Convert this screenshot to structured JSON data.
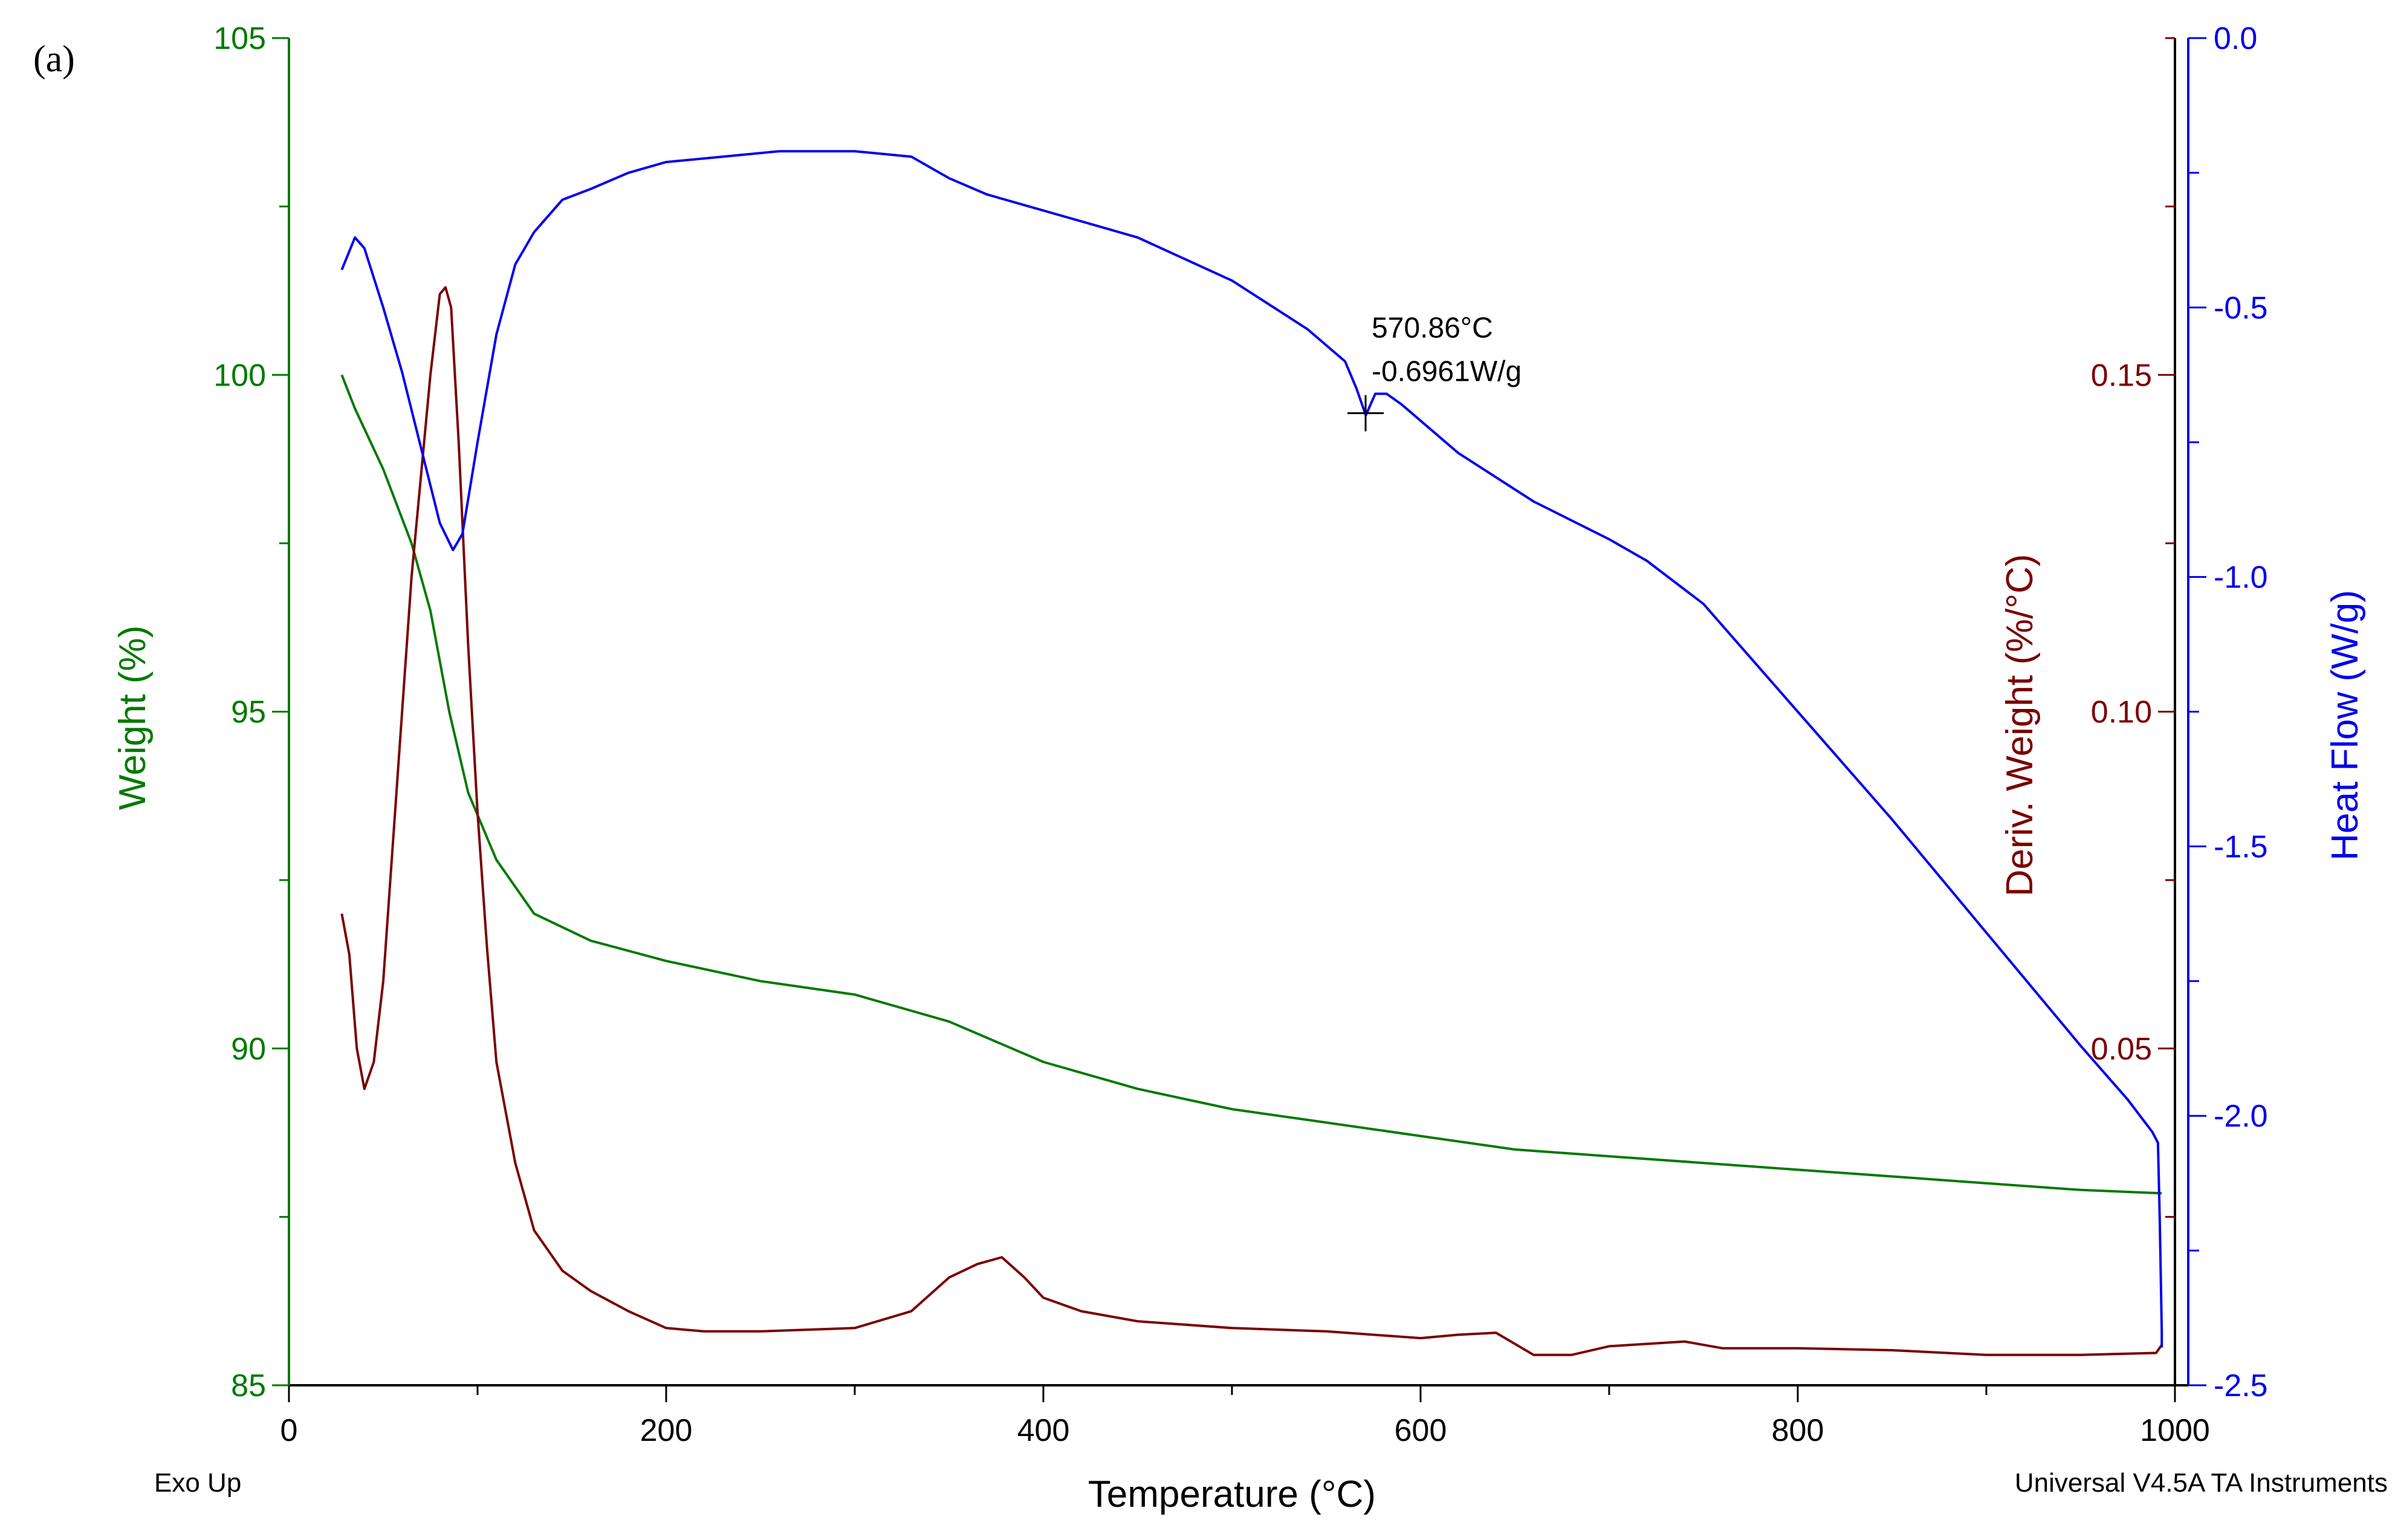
{
  "chart_data": {
    "type": "line",
    "panel_label": "(a)",
    "title": "",
    "xlabel": "Temperature (°C)",
    "xlim": [
      0,
      1000
    ],
    "xticks": [
      0,
      200,
      400,
      600,
      800,
      1000
    ],
    "x_tick_labels": [
      "0",
      "200",
      "400",
      "600",
      "800",
      "1000"
    ],
    "grid": false,
    "footer_left": "Exo Up",
    "footer_right": "Universal V4.5A TA Instruments",
    "colors": {
      "weight": "#007a00",
      "deriv": "#7a0000",
      "heat": "#0000ee",
      "frame": "#000000"
    },
    "axes": {
      "weight": {
        "label": "Weight (%)",
        "side": "left",
        "lim": [
          85,
          105
        ],
        "ticks": [
          85,
          90,
          95,
          100,
          105
        ],
        "tick_labels": [
          "85",
          "90",
          "95",
          "100",
          "105"
        ]
      },
      "deriv": {
        "label": "Deriv. Weight (%/°C)",
        "side": "right-inner",
        "lim": [
          0.0,
          0.2
        ],
        "ticks": [
          0.05,
          0.1,
          0.15
        ],
        "tick_labels": [
          "0.05",
          "0.10",
          "0.15"
        ]
      },
      "heat": {
        "label": "Heat Flow (W/g)",
        "side": "right-outer",
        "lim": [
          -2.5,
          0.0
        ],
        "ticks": [
          -2.5,
          -2.0,
          -1.5,
          -1.0,
          -0.5,
          0.0
        ],
        "tick_labels": [
          "-2.5",
          "-2.0",
          "-1.5",
          "-1.0",
          "-0.5",
          "0.0"
        ]
      }
    },
    "series": [
      {
        "name": "Weight",
        "axis": "weight",
        "x": [
          28,
          35,
          50,
          65,
          75,
          85,
          95,
          110,
          130,
          160,
          200,
          250,
          300,
          350,
          400,
          450,
          500,
          550,
          600,
          650,
          700,
          750,
          800,
          850,
          900,
          950,
          993
        ],
        "y": [
          100.0,
          99.5,
          98.6,
          97.5,
          96.5,
          95.0,
          93.8,
          92.8,
          92.0,
          91.6,
          91.3,
          91.0,
          90.8,
          90.4,
          89.8,
          89.4,
          89.1,
          88.9,
          88.7,
          88.5,
          88.4,
          88.3,
          88.2,
          88.1,
          88.0,
          87.9,
          87.85
        ]
      },
      {
        "name": "Deriv. Weight",
        "axis": "deriv",
        "x": [
          28,
          32,
          36,
          40,
          45,
          50,
          55,
          60,
          65,
          70,
          75,
          80,
          83,
          86,
          90,
          95,
          100,
          105,
          110,
          120,
          130,
          145,
          160,
          180,
          200,
          220,
          250,
          300,
          330,
          350,
          365,
          378,
          390,
          400,
          420,
          450,
          500,
          550,
          600,
          620,
          640,
          660,
          680,
          700,
          740,
          760,
          800,
          850,
          900,
          950,
          990,
          993
        ],
        "y": [
          0.07,
          0.064,
          0.05,
          0.044,
          0.048,
          0.06,
          0.08,
          0.1,
          0.12,
          0.135,
          0.15,
          0.162,
          0.163,
          0.16,
          0.14,
          0.11,
          0.085,
          0.065,
          0.048,
          0.033,
          0.023,
          0.017,
          0.014,
          0.011,
          0.0085,
          0.008,
          0.008,
          0.0085,
          0.011,
          0.016,
          0.018,
          0.019,
          0.016,
          0.013,
          0.011,
          0.0095,
          0.0085,
          0.008,
          0.007,
          0.0075,
          0.0078,
          0.0045,
          0.0045,
          0.0058,
          0.0065,
          0.0055,
          0.0055,
          0.0052,
          0.0045,
          0.0045,
          0.0048,
          0.006
        ]
      },
      {
        "name": "Heat Flow",
        "axis": "heat",
        "x": [
          28,
          35,
          40,
          50,
          60,
          70,
          80,
          87,
          92,
          100,
          110,
          120,
          130,
          145,
          160,
          180,
          200,
          230,
          260,
          300,
          330,
          350,
          370,
          390,
          420,
          450,
          500,
          540,
          560,
          566,
          571,
          576,
          582,
          590,
          620,
          660,
          700,
          720,
          750,
          800,
          850,
          900,
          950,
          975,
          988,
          991,
          992,
          993,
          993
        ],
        "y": [
          -0.43,
          -0.37,
          -0.39,
          -0.5,
          -0.62,
          -0.76,
          -0.9,
          -0.95,
          -0.92,
          -0.75,
          -0.55,
          -0.42,
          -0.36,
          -0.3,
          -0.28,
          -0.25,
          -0.23,
          -0.22,
          -0.21,
          -0.21,
          -0.22,
          -0.26,
          -0.29,
          -0.31,
          -0.34,
          -0.37,
          -0.45,
          -0.54,
          -0.6,
          -0.65,
          -0.7,
          -0.66,
          -0.66,
          -0.68,
          -0.77,
          -0.86,
          -0.93,
          -0.97,
          -1.05,
          -1.25,
          -1.45,
          -1.66,
          -1.87,
          -1.97,
          -2.03,
          -2.05,
          -2.2,
          -2.4,
          -2.43
        ]
      }
    ],
    "annotations": [
      {
        "series": "Heat Flow",
        "x": 570.86,
        "y": -0.6961,
        "line1": "570.86°C",
        "line2": "-0.6961W/g",
        "marker": "cross"
      }
    ]
  }
}
